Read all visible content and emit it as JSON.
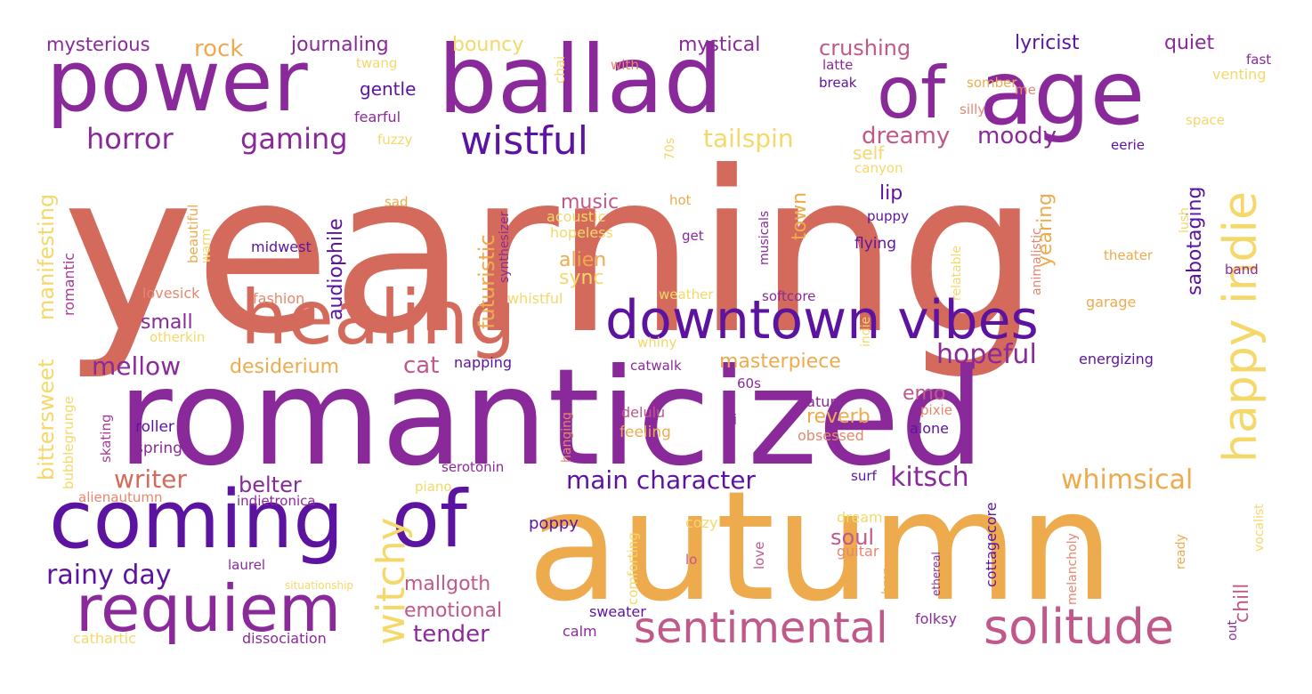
{
  "wordcloud": {
    "words": [
      {
        "text": "yearning",
        "color": "#d46a5c"
      },
      {
        "text": "romanticized",
        "color": "#8a2a9a"
      },
      {
        "text": "autumn",
        "color": "#edab4e"
      },
      {
        "text": "power",
        "color": "#8a2a9a"
      },
      {
        "text": "ballad",
        "color": "#8a2a9a"
      },
      {
        "text": "of",
        "color": "#8a2a9a"
      },
      {
        "text": "age",
        "color": "#8a2a9a"
      },
      {
        "text": "healing",
        "color": "#d46a5c"
      },
      {
        "text": "downtown vibes",
        "color": "#5c14a0"
      },
      {
        "text": "coming",
        "color": "#5c14a0"
      },
      {
        "text": "of",
        "color": "#5c14a0"
      },
      {
        "text": "requiem",
        "color": "#8a2a9a"
      },
      {
        "text": "sentimental",
        "color": "#c0588a"
      },
      {
        "text": "solitude",
        "color": "#c0588a"
      },
      {
        "text": "happy indie",
        "color": "#f4d86a"
      },
      {
        "text": "witchy",
        "color": "#f4d86a"
      },
      {
        "text": "wistful",
        "color": "#5c14a0"
      },
      {
        "text": "horror",
        "color": "#8a2a9a"
      },
      {
        "text": "gaming",
        "color": "#8a2a9a"
      },
      {
        "text": "mysterious",
        "color": "#8a2a9a"
      },
      {
        "text": "rock",
        "color": "#edab4e"
      },
      {
        "text": "journaling",
        "color": "#8a2a9a"
      },
      {
        "text": "bouncy",
        "color": "#f4d86a"
      },
      {
        "text": "mystical",
        "color": "#8a2a9a"
      },
      {
        "text": "crushing",
        "color": "#c0588a"
      },
      {
        "text": "lyricist",
        "color": "#5c14a0"
      },
      {
        "text": "quiet",
        "color": "#8a2a9a"
      },
      {
        "text": "gentle",
        "color": "#5c14a0"
      },
      {
        "text": "tailspin",
        "color": "#f4d86a"
      },
      {
        "text": "dreamy",
        "color": "#c0588a"
      },
      {
        "text": "moody",
        "color": "#8a2a9a"
      },
      {
        "text": "kitsch",
        "color": "#8a2a9a"
      },
      {
        "text": "whimsical",
        "color": "#edab4e"
      },
      {
        "text": "main character",
        "color": "#5c14a0"
      },
      {
        "text": "writer",
        "color": "#d46a5c"
      },
      {
        "text": "belter",
        "color": "#8a2a9a"
      },
      {
        "text": "mellow",
        "color": "#8a2a9a"
      },
      {
        "text": "hopeful",
        "color": "#8a2a9a"
      },
      {
        "text": "desiderium",
        "color": "#edab4e"
      },
      {
        "text": "cat",
        "color": "#c0588a"
      },
      {
        "text": "masterpiece",
        "color": "#edab4e"
      },
      {
        "text": "rainy day",
        "color": "#5c14a0"
      },
      {
        "text": "mallgoth",
        "color": "#c0588a"
      },
      {
        "text": "emotional",
        "color": "#c0588a"
      },
      {
        "text": "tender",
        "color": "#8a2a9a"
      },
      {
        "text": "music",
        "color": "#c0588a"
      },
      {
        "text": "alien",
        "color": "#edab4e"
      },
      {
        "text": "sync",
        "color": "#f4d86a"
      },
      {
        "text": "futuristic",
        "color": "#edab4e"
      },
      {
        "text": "audiophile",
        "color": "#5c14a0"
      },
      {
        "text": "small",
        "color": "#8a2a9a"
      },
      {
        "text": "town",
        "color": "#edab4e"
      },
      {
        "text": "lip",
        "color": "#5c14a0"
      },
      {
        "text": "self",
        "color": "#f4d86a"
      },
      {
        "text": "soul",
        "color": "#c0588a"
      },
      {
        "text": "chill",
        "color": "#c0588a"
      },
      {
        "text": "emo",
        "color": "#c0588a"
      },
      {
        "text": "reverb",
        "color": "#edab4e"
      },
      {
        "text": "yearing",
        "color": "#edab4e"
      },
      {
        "text": "sabotaging",
        "color": "#5c14a0"
      },
      {
        "text": "bittersweet",
        "color": "#f4d86a"
      },
      {
        "text": "manifesting",
        "color": "#f4d86a"
      },
      {
        "text": "romantic",
        "color": "#a43a98"
      },
      {
        "text": "bubblegrunge",
        "color": "#f4d86a"
      },
      {
        "text": "twang",
        "color": "#f4d86a"
      },
      {
        "text": "with",
        "color": "#e5876e"
      },
      {
        "text": "chai",
        "color": "#f4d86a"
      },
      {
        "text": "latte",
        "color": "#8a2a9a"
      },
      {
        "text": "break",
        "color": "#5c14a0"
      },
      {
        "text": "me",
        "color": "#e5876e"
      },
      {
        "text": "fast",
        "color": "#8a2a9a"
      },
      {
        "text": "venting",
        "color": "#f4d86a"
      },
      {
        "text": "somber",
        "color": "#edab4e"
      },
      {
        "text": "silly",
        "color": "#e5876e"
      },
      {
        "text": "space",
        "color": "#f4d86a"
      },
      {
        "text": "fearful",
        "color": "#8a2a9a"
      },
      {
        "text": "fuzzy",
        "color": "#f4d86a"
      },
      {
        "text": "eerie",
        "color": "#5c14a0"
      },
      {
        "text": "70s",
        "color": "#f4d86a"
      },
      {
        "text": "canyon",
        "color": "#f4d86a"
      },
      {
        "text": "sad",
        "color": "#edab4e"
      },
      {
        "text": "hot",
        "color": "#edab4e"
      },
      {
        "text": "acoustic",
        "color": "#f4d86a"
      },
      {
        "text": "hopeless",
        "color": "#f4d86a"
      },
      {
        "text": "puppy",
        "color": "#5c14a0"
      },
      {
        "text": "get",
        "color": "#8a2a9a"
      },
      {
        "text": "flying",
        "color": "#5c14a0"
      },
      {
        "text": "midwest",
        "color": "#5c14a0"
      },
      {
        "text": "beautiful",
        "color": "#edab4e"
      },
      {
        "text": "warm",
        "color": "#f4d86a"
      },
      {
        "text": "lovesick",
        "color": "#e5876e"
      },
      {
        "text": "fashion",
        "color": "#e5876e"
      },
      {
        "text": "whistful",
        "color": "#f4d86a"
      },
      {
        "text": "weather",
        "color": "#f4d86a"
      },
      {
        "text": "softcore",
        "color": "#8a2a9a"
      },
      {
        "text": "otherkin",
        "color": "#f4d86a"
      },
      {
        "text": "whiny",
        "color": "#f4d86a"
      },
      {
        "text": "napping",
        "color": "#5c14a0"
      },
      {
        "text": "catwalk",
        "color": "#8a2a9a"
      },
      {
        "text": "energizing",
        "color": "#5c14a0"
      },
      {
        "text": "60s",
        "color": "#8a2a9a"
      },
      {
        "text": "nature",
        "color": "#8a2a9a"
      },
      {
        "text": "pixie",
        "color": "#e5876e"
      },
      {
        "text": "delulu",
        "color": "#c0588a"
      },
      {
        "text": "fi",
        "color": "#8a2a9a"
      },
      {
        "text": "feeling",
        "color": "#edab4e"
      },
      {
        "text": "obsessed",
        "color": "#e5876e"
      },
      {
        "text": "alone",
        "color": "#5c14a0"
      },
      {
        "text": "roller",
        "color": "#5c14a0"
      },
      {
        "text": "spring",
        "color": "#8a2a9a"
      },
      {
        "text": "skating",
        "color": "#a43a98"
      },
      {
        "text": "serotonin",
        "color": "#8a2a9a"
      },
      {
        "text": "piano",
        "color": "#f4d86a"
      },
      {
        "text": "hanging",
        "color": "#e5876e"
      },
      {
        "text": "surf",
        "color": "#5c14a0"
      },
      {
        "text": "alienautumn",
        "color": "#e5876e"
      },
      {
        "text": "indietronica",
        "color": "#8a2a9a"
      },
      {
        "text": "poppy",
        "color": "#5c14a0"
      },
      {
        "text": "cozy",
        "color": "#f4d86a"
      },
      {
        "text": "dream",
        "color": "#f4d86a"
      },
      {
        "text": "guitar",
        "color": "#e5876e"
      },
      {
        "text": "comforting",
        "color": "#f4d86a"
      },
      {
        "text": "love",
        "color": "#c0588a"
      },
      {
        "text": "lo",
        "color": "#c0588a"
      },
      {
        "text": "laurel",
        "color": "#8a2a9a"
      },
      {
        "text": "situationship",
        "color": "#f4d86a"
      },
      {
        "text": "sweater",
        "color": "#5c14a0"
      },
      {
        "text": "cathartic",
        "color": "#f4d86a"
      },
      {
        "text": "dissociation",
        "color": "#8a2a9a"
      },
      {
        "text": "calm",
        "color": "#8a2a9a"
      },
      {
        "text": "folksy",
        "color": "#8a2a9a"
      },
      {
        "text": "bmp",
        "color": "#edab4e"
      },
      {
        "text": "cottagecore",
        "color": "#5c14a0"
      },
      {
        "text": "melancholy",
        "color": "#e5876e"
      },
      {
        "text": "ethereal",
        "color": "#8a2a9a"
      },
      {
        "text": "ready",
        "color": "#edab4e"
      },
      {
        "text": "vocalist",
        "color": "#f4d86a"
      },
      {
        "text": "out",
        "color": "#8a2a9a"
      },
      {
        "text": "animalistic",
        "color": "#e5876e"
      },
      {
        "text": "relatable",
        "color": "#f4d86a"
      },
      {
        "text": "indie",
        "color": "#f4d86a"
      },
      {
        "text": "musicals",
        "color": "#8a2a9a"
      },
      {
        "text": "synthesizer",
        "color": "#8a2a9a"
      },
      {
        "text": "lush",
        "color": "#f4d86a"
      },
      {
        "text": "theater",
        "color": "#edab4e"
      },
      {
        "text": "band",
        "color": "#8a2a9a"
      },
      {
        "text": "garage",
        "color": "#edab4e"
      }
    ]
  }
}
